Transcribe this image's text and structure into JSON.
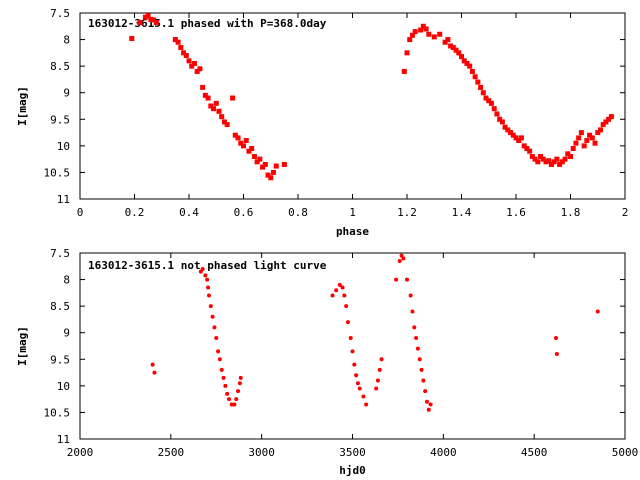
{
  "chart_data": [
    {
      "type": "scatter",
      "title": "163012-3615.1 phased with P=368.0day",
      "xlabel": "phase",
      "ylabel": "I[mag]",
      "xlim": [
        0,
        2
      ],
      "ylim": [
        7.5,
        11
      ],
      "y_inverted": true,
      "grid": false,
      "title_placement": "inside top-left",
      "xticks": [
        "0",
        "0.2",
        "0.4",
        "0.6",
        "0.8",
        "1",
        "1.2",
        "1.4",
        "1.6",
        "1.8",
        "2"
      ],
      "yticks": [
        "7.5",
        "8",
        "8.5",
        "9",
        "9.5",
        "10",
        "10.5",
        "11"
      ],
      "marker_color": "#ff0000",
      "series": [
        {
          "points": [
            [
              0.19,
              7.98
            ],
            [
              0.22,
              7.68
            ],
            [
              0.24,
              7.58
            ],
            [
              0.25,
              7.55
            ],
            [
              0.26,
              7.62
            ],
            [
              0.27,
              7.63
            ],
            [
              0.28,
              7.68
            ],
            [
              0.35,
              8.0
            ],
            [
              0.36,
              8.05
            ],
            [
              0.37,
              8.15
            ],
            [
              0.38,
              8.25
            ],
            [
              0.39,
              8.3
            ],
            [
              0.4,
              8.4
            ],
            [
              0.41,
              8.5
            ],
            [
              0.42,
              8.45
            ],
            [
              0.43,
              8.6
            ],
            [
              0.44,
              8.55
            ],
            [
              0.45,
              8.9
            ],
            [
              0.46,
              9.05
            ],
            [
              0.47,
              9.1
            ],
            [
              0.48,
              9.25
            ],
            [
              0.49,
              9.3
            ],
            [
              0.5,
              9.2
            ],
            [
              0.51,
              9.35
            ],
            [
              0.52,
              9.45
            ],
            [
              0.53,
              9.55
            ],
            [
              0.54,
              9.6
            ],
            [
              0.56,
              9.1
            ],
            [
              0.57,
              9.8
            ],
            [
              0.58,
              9.85
            ],
            [
              0.59,
              9.95
            ],
            [
              0.6,
              10.0
            ],
            [
              0.61,
              9.9
            ],
            [
              0.62,
              10.1
            ],
            [
              0.63,
              10.05
            ],
            [
              0.64,
              10.2
            ],
            [
              0.65,
              10.3
            ],
            [
              0.66,
              10.25
            ],
            [
              0.67,
              10.4
            ],
            [
              0.68,
              10.35
            ],
            [
              0.69,
              10.55
            ],
            [
              0.7,
              10.6
            ],
            [
              0.71,
              10.5
            ],
            [
              0.72,
              10.38
            ],
            [
              0.75,
              10.35
            ],
            [
              1.19,
              8.6
            ],
            [
              1.2,
              8.25
            ],
            [
              1.21,
              8.0
            ],
            [
              1.22,
              7.92
            ],
            [
              1.23,
              7.85
            ],
            [
              1.25,
              7.82
            ],
            [
              1.26,
              7.75
            ],
            [
              1.27,
              7.8
            ],
            [
              1.28,
              7.9
            ],
            [
              1.3,
              7.95
            ],
            [
              1.32,
              7.9
            ],
            [
              1.34,
              8.05
            ],
            [
              1.35,
              8.0
            ],
            [
              1.36,
              8.12
            ],
            [
              1.37,
              8.15
            ],
            [
              1.38,
              8.2
            ],
            [
              1.39,
              8.25
            ],
            [
              1.4,
              8.32
            ],
            [
              1.41,
              8.4
            ],
            [
              1.42,
              8.45
            ],
            [
              1.43,
              8.5
            ],
            [
              1.44,
              8.6
            ],
            [
              1.45,
              8.7
            ],
            [
              1.46,
              8.8
            ],
            [
              1.47,
              8.9
            ],
            [
              1.48,
              9.0
            ],
            [
              1.49,
              9.1
            ],
            [
              1.5,
              9.15
            ],
            [
              1.51,
              9.2
            ],
            [
              1.52,
              9.3
            ],
            [
              1.53,
              9.4
            ],
            [
              1.54,
              9.5
            ],
            [
              1.55,
              9.55
            ],
            [
              1.56,
              9.65
            ],
            [
              1.57,
              9.7
            ],
            [
              1.58,
              9.75
            ],
            [
              1.59,
              9.8
            ],
            [
              1.6,
              9.85
            ],
            [
              1.61,
              9.9
            ],
            [
              1.62,
              9.85
            ],
            [
              1.63,
              10.0
            ],
            [
              1.64,
              10.05
            ],
            [
              1.65,
              10.1
            ],
            [
              1.66,
              10.2
            ],
            [
              1.67,
              10.25
            ],
            [
              1.68,
              10.3
            ],
            [
              1.69,
              10.2
            ],
            [
              1.7,
              10.25
            ],
            [
              1.71,
              10.3
            ],
            [
              1.72,
              10.28
            ],
            [
              1.73,
              10.35
            ],
            [
              1.74,
              10.3
            ],
            [
              1.75,
              10.25
            ],
            [
              1.76,
              10.35
            ],
            [
              1.77,
              10.3
            ],
            [
              1.78,
              10.25
            ],
            [
              1.79,
              10.15
            ],
            [
              1.8,
              10.2
            ],
            [
              1.81,
              10.05
            ],
            [
              1.82,
              9.95
            ],
            [
              1.83,
              9.85
            ],
            [
              1.84,
              9.75
            ],
            [
              1.85,
              10.0
            ],
            [
              1.86,
              9.9
            ],
            [
              1.87,
              9.8
            ],
            [
              1.88,
              9.85
            ],
            [
              1.89,
              9.95
            ],
            [
              1.9,
              9.75
            ],
            [
              1.91,
              9.7
            ],
            [
              1.92,
              9.6
            ],
            [
              1.93,
              9.55
            ],
            [
              1.94,
              9.5
            ],
            [
              1.95,
              9.45
            ]
          ]
        }
      ]
    },
    {
      "type": "scatter",
      "title": "163012-3615.1 not phased light curve",
      "xlabel": "hjd0",
      "ylabel": "I[mag]",
      "xlim": [
        2000,
        5000
      ],
      "ylim": [
        7.5,
        11
      ],
      "y_inverted": true,
      "grid": false,
      "title_placement": "inside top-left",
      "xticks": [
        "2000",
        "2500",
        "3000",
        "3500",
        "4000",
        "4500",
        "5000"
      ],
      "yticks": [
        "7.5",
        "8",
        "8.5",
        "9",
        "9.5",
        "10",
        "10.5",
        "11"
      ],
      "marker_color": "#ff0000",
      "series": [
        {
          "points": [
            [
              2400,
              9.6
            ],
            [
              2410,
              9.75
            ],
            [
              2665,
              7.85
            ],
            [
              2675,
              7.8
            ],
            [
              2690,
              7.92
            ],
            [
              2700,
              8.0
            ],
            [
              2705,
              8.15
            ],
            [
              2710,
              8.3
            ],
            [
              2720,
              8.5
            ],
            [
              2730,
              8.7
            ],
            [
              2740,
              8.9
            ],
            [
              2750,
              9.1
            ],
            [
              2760,
              9.35
            ],
            [
              2770,
              9.5
            ],
            [
              2780,
              9.7
            ],
            [
              2790,
              9.85
            ],
            [
              2800,
              10.0
            ],
            [
              2810,
              10.15
            ],
            [
              2820,
              10.25
            ],
            [
              2835,
              10.35
            ],
            [
              2850,
              10.35
            ],
            [
              2860,
              10.25
            ],
            [
              2870,
              10.1
            ],
            [
              2880,
              9.95
            ],
            [
              2885,
              9.85
            ],
            [
              3390,
              8.3
            ],
            [
              3410,
              8.2
            ],
            [
              3430,
              8.1
            ],
            [
              3445,
              8.15
            ],
            [
              3455,
              8.3
            ],
            [
              3465,
              8.5
            ],
            [
              3475,
              8.8
            ],
            [
              3490,
              9.1
            ],
            [
              3500,
              9.35
            ],
            [
              3510,
              9.6
            ],
            [
              3520,
              9.8
            ],
            [
              3530,
              9.95
            ],
            [
              3540,
              10.05
            ],
            [
              3560,
              10.2
            ],
            [
              3575,
              10.35
            ],
            [
              3630,
              10.05
            ],
            [
              3640,
              9.9
            ],
            [
              3650,
              9.7
            ],
            [
              3660,
              9.5
            ],
            [
              3740,
              8.0
            ],
            [
              3760,
              7.65
            ],
            [
              3770,
              7.55
            ],
            [
              3780,
              7.6
            ],
            [
              3800,
              8.0
            ],
            [
              3820,
              8.3
            ],
            [
              3830,
              8.6
            ],
            [
              3840,
              8.9
            ],
            [
              3850,
              9.1
            ],
            [
              3860,
              9.3
            ],
            [
              3870,
              9.5
            ],
            [
              3880,
              9.7
            ],
            [
              3890,
              9.9
            ],
            [
              3900,
              10.1
            ],
            [
              3910,
              10.3
            ],
            [
              3920,
              10.45
            ],
            [
              3930,
              10.35
            ],
            [
              4620,
              9.1
            ],
            [
              4625,
              9.4
            ],
            [
              4850,
              8.6
            ]
          ]
        }
      ]
    }
  ]
}
